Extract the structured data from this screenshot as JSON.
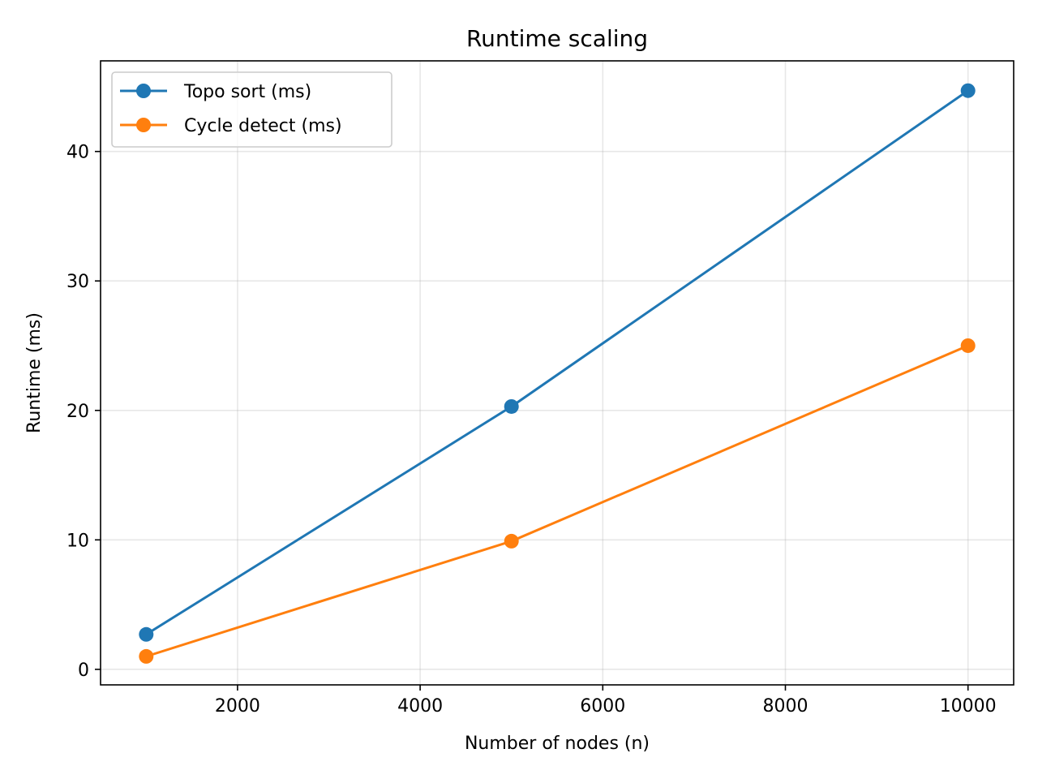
{
  "chart_data": {
    "type": "line",
    "title": "Runtime scaling",
    "xlabel": "Number of nodes (n)",
    "ylabel": "Runtime (ms)",
    "x": [
      1000,
      5000,
      10000
    ],
    "xlim": [
      500,
      10500
    ],
    "ylim": [
      -1.2,
      47.0
    ],
    "x_ticks": [
      2000,
      4000,
      6000,
      8000,
      10000
    ],
    "y_ticks": [
      0,
      10,
      20,
      30,
      40
    ],
    "grid": true,
    "legend_position": "upper left",
    "series": [
      {
        "name": "Topo sort (ms)",
        "values": [
          2.7,
          20.3,
          44.7
        ],
        "color": "#1f77b4",
        "marker": "circle"
      },
      {
        "name": "Cycle detect (ms)",
        "values": [
          1.0,
          9.9,
          25.0
        ],
        "color": "#ff7f0e",
        "marker": "circle"
      }
    ]
  }
}
